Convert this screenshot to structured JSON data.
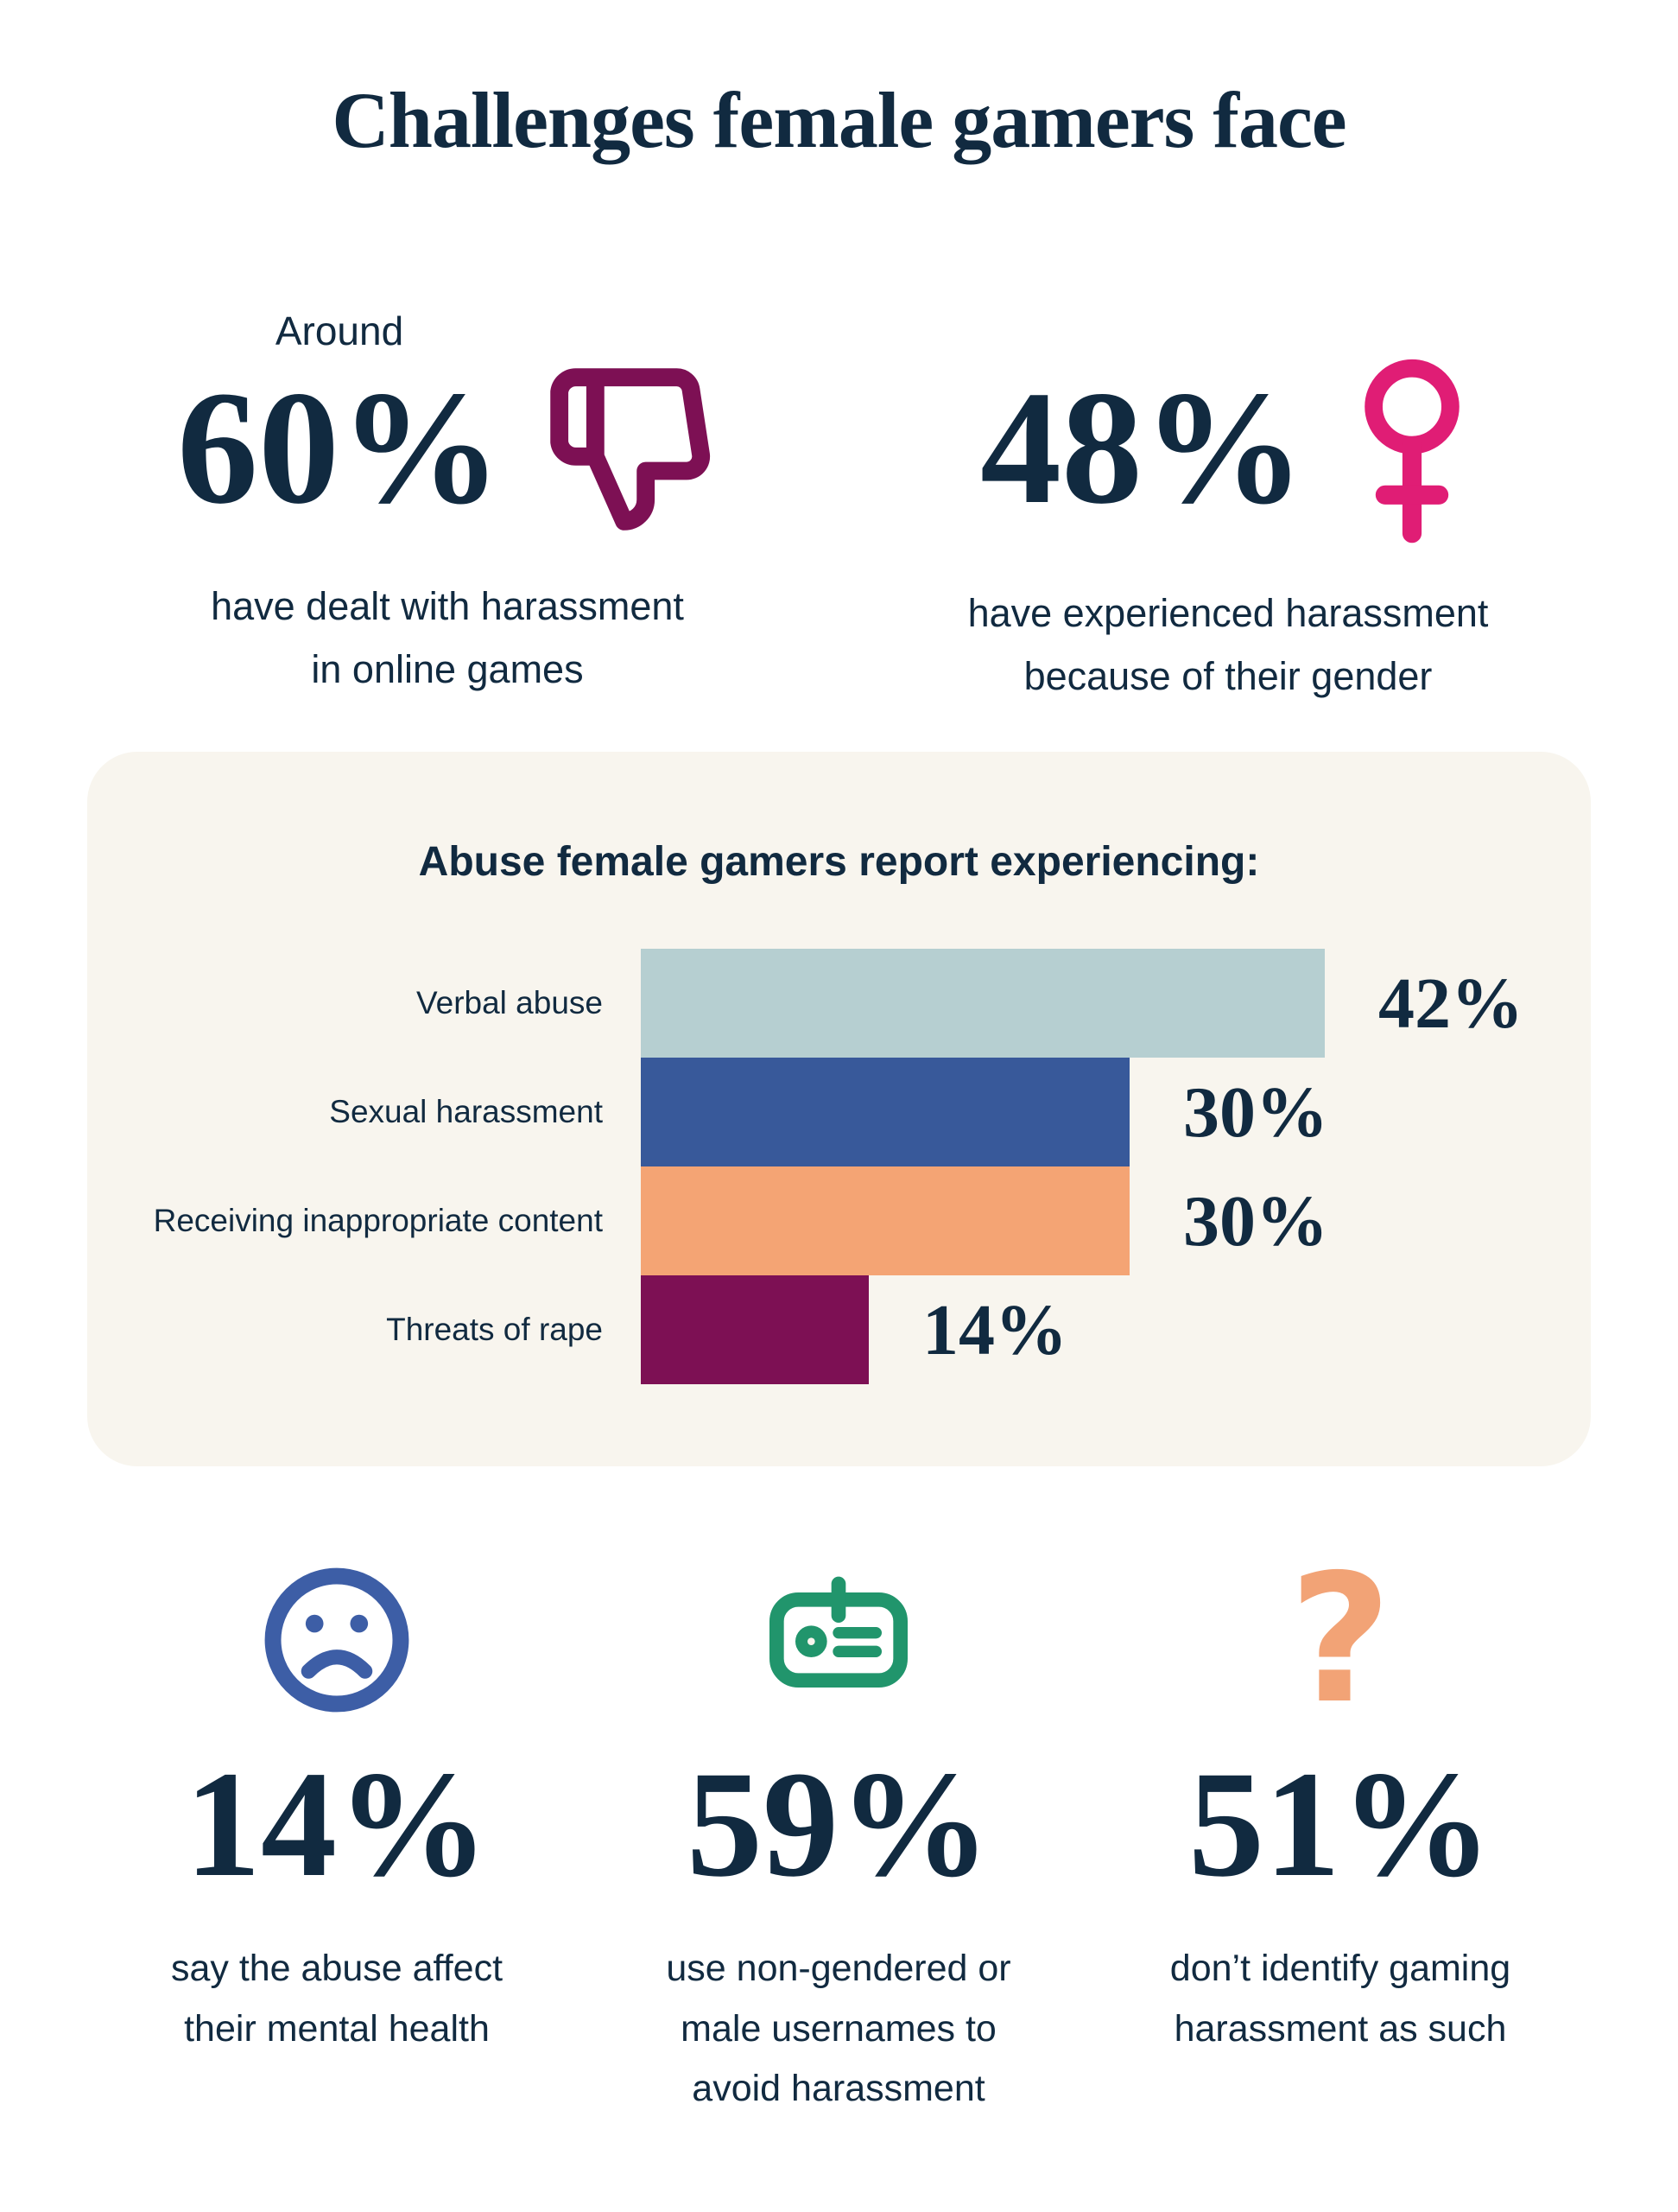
{
  "page": {
    "title": "Challenges female gamers face",
    "background": "#ffffff",
    "text_color": "#112a40",
    "card_background": "#f8f5ee"
  },
  "top_stats": [
    {
      "prefix": "Around",
      "value": "60%",
      "icon": "thumbs-down-icon",
      "icon_color": "#7d1054",
      "caption": "have dealt with harassment\nin online games"
    },
    {
      "prefix": "",
      "value": "48%",
      "icon": "female-icon",
      "icon_color": "#e01d75",
      "caption": "have experienced harassment\nbecause of their gender"
    }
  ],
  "chart_data": {
    "type": "bar",
    "orientation": "horizontal",
    "title": "Abuse female gamers report experiencing:",
    "categories": [
      "Verbal abuse",
      "Sexual harassment",
      "Receiving inappropriate content",
      "Threats of rape"
    ],
    "values": [
      42,
      30,
      30,
      14
    ],
    "value_labels": [
      "42%",
      "30%",
      "30%",
      "14%"
    ],
    "bar_colors": [
      "#b6cfd1",
      "#38599a",
      "#f4a474",
      "#7d1054"
    ],
    "xlabel": "",
    "ylabel": "",
    "xlim": [
      0,
      44
    ],
    "grid": false,
    "legend": false
  },
  "bottom_stats": [
    {
      "icon": "sad-face-icon",
      "icon_color": "#3d5ea6",
      "value": "14%",
      "caption": "say the abuse affect\ntheir mental health"
    },
    {
      "icon": "id-badge-icon",
      "icon_color": "#21956c",
      "value": "59%",
      "caption": "use non-gendered or\nmale usernames to\navoid harassment"
    },
    {
      "icon": "question-mark-icon",
      "icon_color": "#f2a376",
      "icon_glyph": "?",
      "value": "51%",
      "caption": "don’t identify gaming\nharassment as such"
    }
  ]
}
